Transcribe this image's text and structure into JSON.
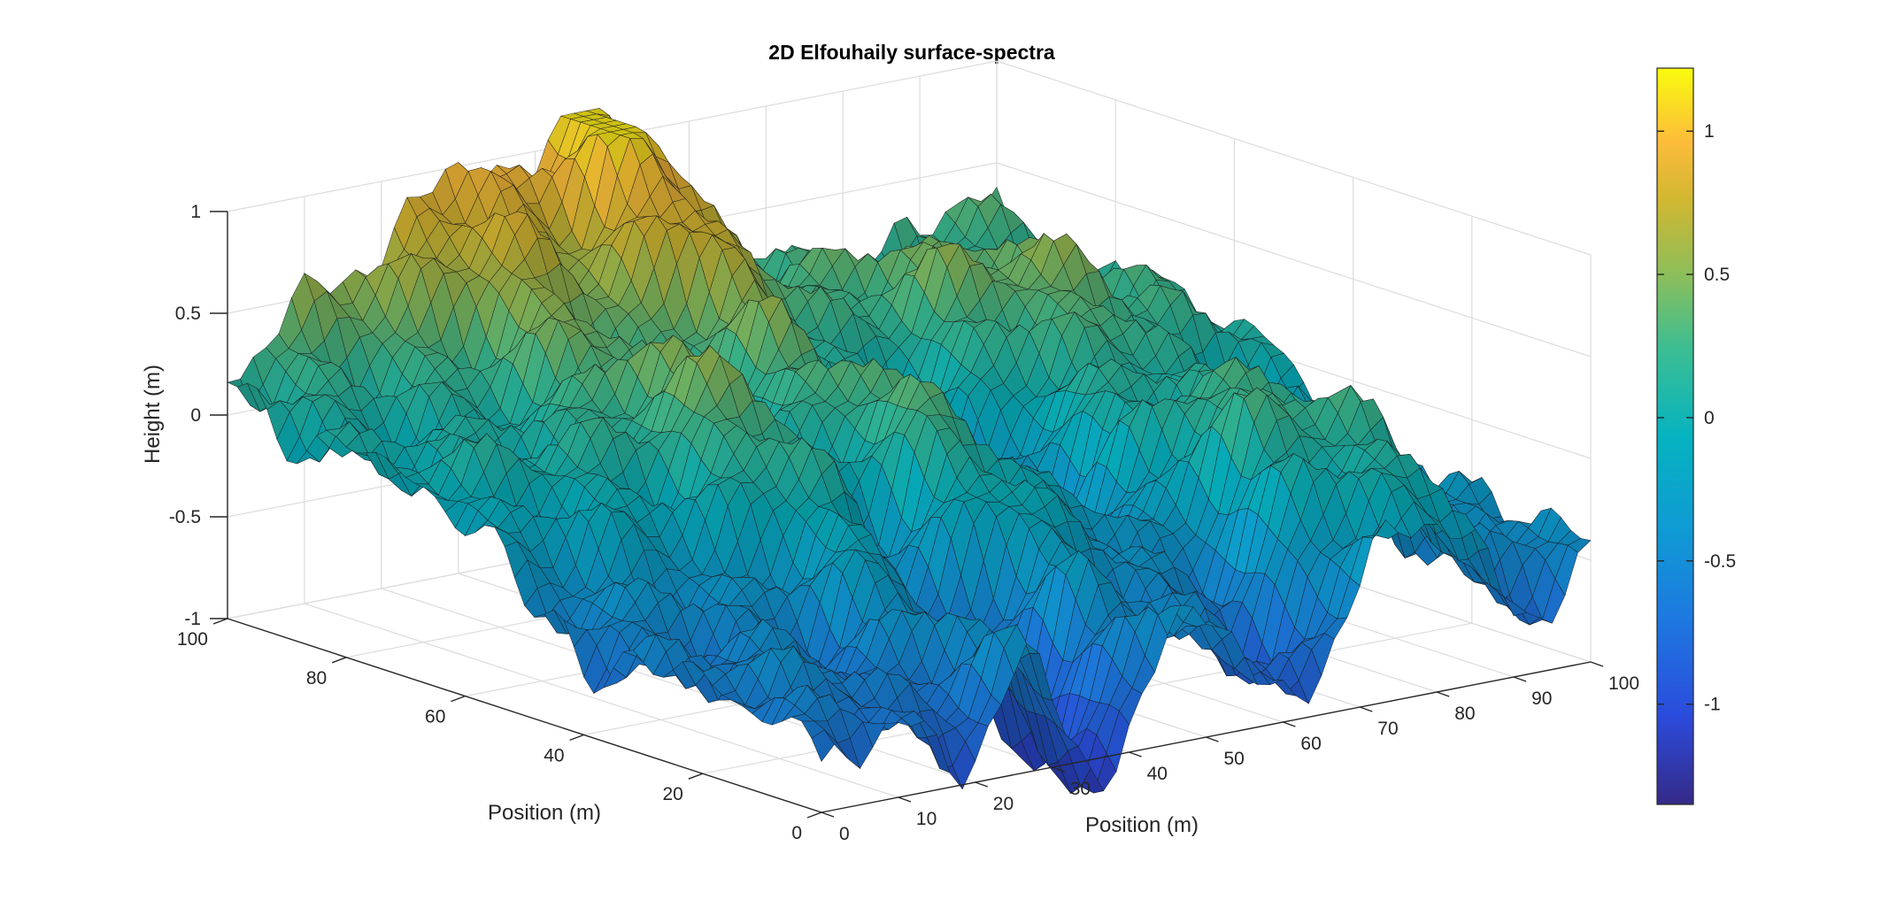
{
  "chart_data": {
    "type": "surface",
    "title": "2D Elfouhaily surface-spectra",
    "xlabel": "Position (m)",
    "ylabel": "Position (m)",
    "zlabel": "Height (m)",
    "x_range": [
      0,
      100
    ],
    "y_range": [
      0,
      100
    ],
    "z_range": [
      -1,
      1
    ],
    "x_ticks": [
      "0",
      "10",
      "20",
      "30",
      "40",
      "50",
      "60",
      "70",
      "80",
      "90",
      "100"
    ],
    "y_ticks": [
      "0",
      "20",
      "40",
      "60",
      "80",
      "100"
    ],
    "z_ticks": [
      "-1",
      "-0.5",
      "0",
      "0.5",
      "1"
    ],
    "colormap": "parula",
    "colorbar": {
      "range": [
        -1.35,
        1.22
      ],
      "ticks": [
        "-1",
        "-0.5",
        "0",
        "0.5",
        "1"
      ],
      "tick_values": [
        -1,
        -0.5,
        0,
        0.5,
        1
      ],
      "placement": "right"
    },
    "grid": true,
    "view": "3D perspective, azimuth about -37.5 deg, elevation about 30 deg",
    "surface_profile": {
      "note_values": "approximate heights (m) read from the rendered surface",
      "front_edge_heights": [
        -0.75,
        -0.85,
        -1.05,
        -0.6,
        -1.1,
        -0.3,
        -0.5,
        -0.9,
        -0.2,
        -0.1,
        -0.7,
        -0.4
      ],
      "back_edge_heights": [
        0.3,
        0.55,
        0.7,
        0.85,
        0.6,
        0.95,
        0.5,
        0.45,
        0.55,
        0.35,
        0.25,
        0.15
      ]
    }
  }
}
